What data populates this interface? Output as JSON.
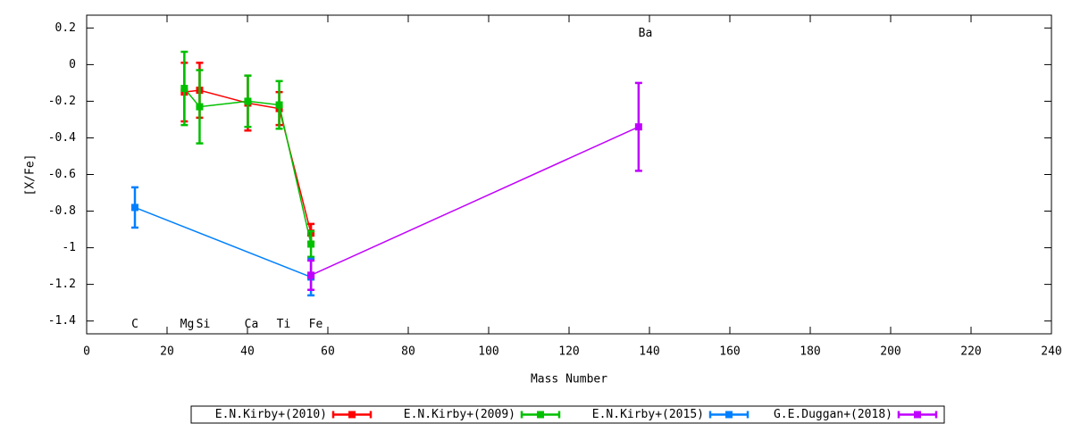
{
  "chart_data": {
    "type": "errorbar-line",
    "xlabel": "Mass Number",
    "ylabel": "[X/Fe]",
    "xlim": [
      0,
      240
    ],
    "xticks": [
      0,
      20,
      40,
      60,
      80,
      100,
      120,
      140,
      160,
      180,
      200,
      220,
      240
    ],
    "ylim": [
      -1.47,
      0.27
    ],
    "yticks": [
      0.2,
      0,
      -0.2,
      -0.4,
      -0.6,
      -0.8,
      -1,
      -1.2,
      -1.4
    ],
    "grid": false,
    "legend": "below",
    "annotations": [
      {
        "text": "C",
        "x": 12,
        "y": -1.42
      },
      {
        "text": "Mg",
        "x": 25,
        "y": -1.42
      },
      {
        "text": "Si",
        "x": 29,
        "y": -1.42
      },
      {
        "text": "Ca",
        "x": 41,
        "y": -1.42
      },
      {
        "text": "Ti",
        "x": 49,
        "y": -1.42
      },
      {
        "text": "Fe",
        "x": 57,
        "y": -1.42
      },
      {
        "text": "Ba",
        "x": 139,
        "y": 0.17
      }
    ],
    "series": [
      {
        "name": "E.N.Kirby+(2010)",
        "color": "#ff0000",
        "x": [
          24.3,
          28.1,
          40.1,
          47.9,
          55.8
        ],
        "values": [
          -0.15,
          -0.14,
          -0.21,
          -0.24,
          -0.92
        ],
        "errors": [
          0.16,
          0.15,
          0.15,
          0.09,
          0.05
        ]
      },
      {
        "name": "E.N.Kirby+(2009)",
        "color": "#00c000",
        "x": [
          24.3,
          28.1,
          40.1,
          47.9,
          55.8
        ],
        "values": [
          -0.13,
          -0.23,
          -0.2,
          -0.22,
          -0.98
        ],
        "errors": [
          0.2,
          0.2,
          0.14,
          0.13,
          0.07
        ]
      },
      {
        "name": "E.N.Kirby+(2015)",
        "color": "#0080ff",
        "x": [
          12.0,
          55.8
        ],
        "values": [
          -0.78,
          -1.16
        ],
        "errors": [
          0.11,
          0.1
        ]
      },
      {
        "name": "G.E.Duggan+(2018)",
        "color": "#c000ff",
        "x": [
          55.8,
          137.3
        ],
        "values": [
          -1.15,
          -0.34
        ],
        "errors": [
          0.08,
          0.24
        ]
      }
    ]
  }
}
